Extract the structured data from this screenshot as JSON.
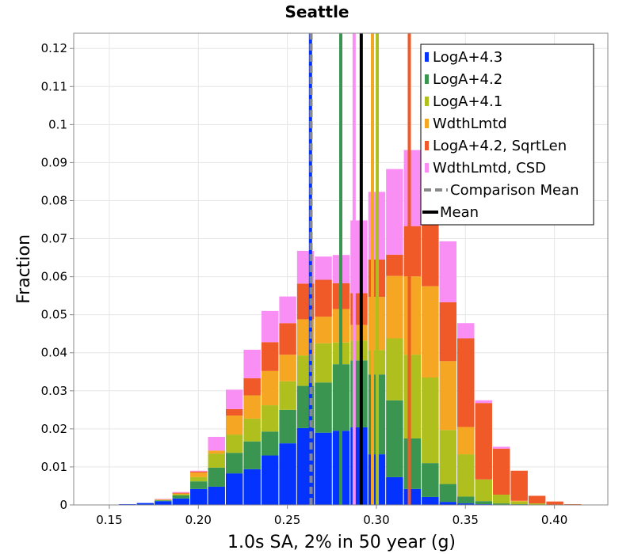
{
  "chart_data": {
    "type": "bar",
    "title": "Seattle",
    "xlabel": "1.0s SA, 2% in 50 year (g)",
    "ylabel": "Fraction",
    "xlim": [
      0.13,
      0.43
    ],
    "ylim": [
      0,
      0.124
    ],
    "xticks": [
      "0.15",
      "0.20",
      "0.25",
      "0.30",
      "0.35",
      "0.40"
    ],
    "xtick_values": [
      0.15,
      0.2,
      0.25,
      0.3,
      0.35,
      0.4
    ],
    "yticks": [
      "0",
      "0.01",
      "0.02",
      "0.03",
      "0.04",
      "0.05",
      "0.06",
      "0.07",
      "0.08",
      "0.09",
      "0.1",
      "0.11",
      "0.12"
    ],
    "ytick_values": [
      0,
      0.01,
      0.02,
      0.03,
      0.04,
      0.05,
      0.06,
      0.07,
      0.08,
      0.09,
      0.1,
      0.11,
      0.12
    ],
    "grid": true,
    "legend_position": "top-right",
    "bin_width": 0.01,
    "bin_starts": [
      0.145,
      0.155,
      0.165,
      0.175,
      0.185,
      0.195,
      0.205,
      0.215,
      0.225,
      0.235,
      0.245,
      0.255,
      0.265,
      0.275,
      0.285,
      0.295,
      0.305,
      0.315,
      0.325,
      0.335,
      0.345,
      0.355,
      0.365,
      0.375,
      0.385,
      0.395,
      0.405,
      0.415
    ],
    "stack_edges": [
      [
        0,
        0.0002,
        0.0005,
        0.001,
        0.0017,
        0.0042,
        0.0048,
        0.0083,
        0.0094,
        0.013,
        0.0162,
        0.0202,
        0.019,
        0.0195,
        0.0204,
        0.0133,
        0.0073,
        0.0042,
        0.0021,
        0.0008,
        0.0004,
        0.0002,
        0.0001,
        0,
        0,
        0,
        0,
        0
      ],
      [
        0,
        0.0002,
        0.0005,
        0.0012,
        0.0025,
        0.0062,
        0.0098,
        0.0137,
        0.0167,
        0.0193,
        0.025,
        0.0313,
        0.0322,
        0.037,
        0.038,
        0.0343,
        0.0275,
        0.0175,
        0.011,
        0.0055,
        0.0022,
        0.001,
        0.0004,
        0.0002,
        0,
        0,
        0,
        0
      ],
      [
        0,
        0.0002,
        0.0005,
        0.0013,
        0.0028,
        0.0073,
        0.0135,
        0.0185,
        0.0227,
        0.0262,
        0.0325,
        0.0393,
        0.0425,
        0.0427,
        0.0432,
        0.0407,
        0.0438,
        0.0395,
        0.0335,
        0.0197,
        0.0133,
        0.0067,
        0.0027,
        0.0009,
        0.0004,
        0.0001,
        0,
        0
      ],
      [
        0,
        0.0002,
        0.0005,
        0.0014,
        0.003,
        0.0085,
        0.0143,
        0.0235,
        0.0288,
        0.0352,
        0.0395,
        0.0488,
        0.0495,
        0.0515,
        0.0473,
        0.0547,
        0.0602,
        0.0601,
        0.0575,
        0.0378,
        0.0205,
        0.0065,
        0.0024,
        0.0011,
        0.0003,
        0.0001,
        0,
        0
      ],
      [
        0,
        0.0002,
        0.0005,
        0.0015,
        0.0032,
        0.0088,
        0.0135,
        0.0252,
        0.0333,
        0.0428,
        0.0478,
        0.0582,
        0.0592,
        0.0583,
        0.0557,
        0.0645,
        0.0658,
        0.0733,
        0.0775,
        0.0533,
        0.0438,
        0.0268,
        0.0148,
        0.009,
        0.0024,
        0.0009,
        0.0002,
        0
      ],
      [
        0,
        0.0002,
        0.0005,
        0.0016,
        0.0034,
        0.009,
        0.0179,
        0.0303,
        0.0408,
        0.051,
        0.0548,
        0.0668,
        0.0653,
        0.0657,
        0.0748,
        0.0823,
        0.0883,
        0.0933,
        0.0803,
        0.0693,
        0.0478,
        0.0275,
        0.0153,
        0.009,
        0.0024,
        0.0009,
        0.0002,
        0
      ]
    ],
    "series": [
      {
        "name": "LogA+4.3",
        "color": "#0433ff"
      },
      {
        "name": "LogA+4.2",
        "color": "#3a9550"
      },
      {
        "name": "LogA+4.1",
        "color": "#aebf1e"
      },
      {
        "name": "WdthLmtd",
        "color": "#f5a623"
      },
      {
        "name": "LogA+4.2, SqrtLen",
        "color": "#f05a28"
      },
      {
        "name": "WdthLmtd, CSD",
        "color": "#f98ef5"
      }
    ],
    "vlines": [
      {
        "x": 0.263,
        "color": "#0433ff",
        "style": "solid",
        "ymax": 0.124
      },
      {
        "x": 0.2633,
        "color": "#888888",
        "style": "dashed",
        "ymax": 0.124
      },
      {
        "x": 0.28,
        "color": "#3a9550",
        "style": "solid",
        "ymax": 0.124
      },
      {
        "x": 0.2875,
        "color": "#f98ef5",
        "style": "solid",
        "ymax": 0.124
      },
      {
        "x": 0.2915,
        "color": "#000000",
        "style": "solid",
        "ymax": 0.124
      },
      {
        "x": 0.2978,
        "color": "#f5a623",
        "style": "solid",
        "ymax": 0.124
      },
      {
        "x": 0.3005,
        "color": "#aebf1e",
        "style": "solid",
        "ymax": 0.124
      },
      {
        "x": 0.3185,
        "color": "#f05a28",
        "style": "solid",
        "ymax": 0.124
      }
    ],
    "legend": [
      {
        "label": "LogA+4.3",
        "color": "#0433ff",
        "kind": "patch"
      },
      {
        "label": "LogA+4.2",
        "color": "#3a9550",
        "kind": "patch"
      },
      {
        "label": "LogA+4.1",
        "color": "#aebf1e",
        "kind": "patch"
      },
      {
        "label": "WdthLmtd",
        "color": "#f5a623",
        "kind": "patch"
      },
      {
        "label": "LogA+4.2, SqrtLen",
        "color": "#f05a28",
        "kind": "patch"
      },
      {
        "label": "WdthLmtd, CSD",
        "color": "#f98ef5",
        "kind": "patch"
      },
      {
        "label": "Comparison Mean",
        "color": "#888888",
        "kind": "dashed"
      },
      {
        "label": "Mean",
        "color": "#000000",
        "kind": "line"
      }
    ]
  }
}
